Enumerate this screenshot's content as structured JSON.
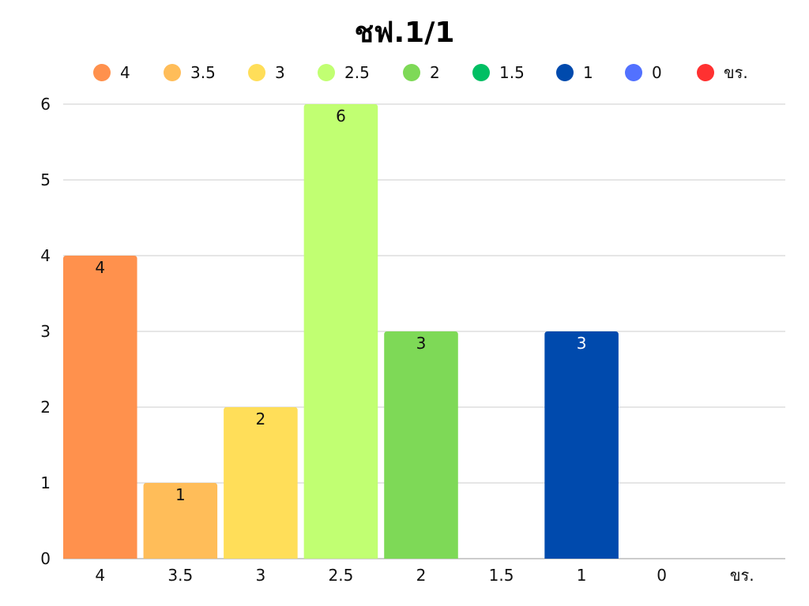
{
  "chart_data": {
    "type": "bar",
    "title": "ชฟ.1/1",
    "categories": [
      "4",
      "3.5",
      "3",
      "2.5",
      "2",
      "1.5",
      "1",
      "0",
      "ขร."
    ],
    "values": [
      4,
      1,
      2,
      6,
      3,
      0,
      3,
      0,
      0
    ],
    "colors": [
      "#ff914d",
      "#ffbd59",
      "#ffde59",
      "#c1ff72",
      "#7ed957",
      "#00bf63",
      "#004aad",
      "#5271ff",
      "#ff3131"
    ],
    "value_label_colors": [
      "#111111",
      "#111111",
      "#111111",
      "#111111",
      "#111111",
      "#111111",
      "#ffffff",
      "#111111",
      "#111111"
    ],
    "yticks": [
      "0",
      "1",
      "2",
      "3",
      "4",
      "5",
      "6"
    ],
    "ylim": [
      0,
      6
    ],
    "legend": {
      "position": "top",
      "entries": [
        "4",
        "3.5",
        "3",
        "2.5",
        "2",
        "1.5",
        "1",
        "0",
        "ขร."
      ]
    },
    "grid": true,
    "xlabel": "",
    "ylabel": ""
  }
}
